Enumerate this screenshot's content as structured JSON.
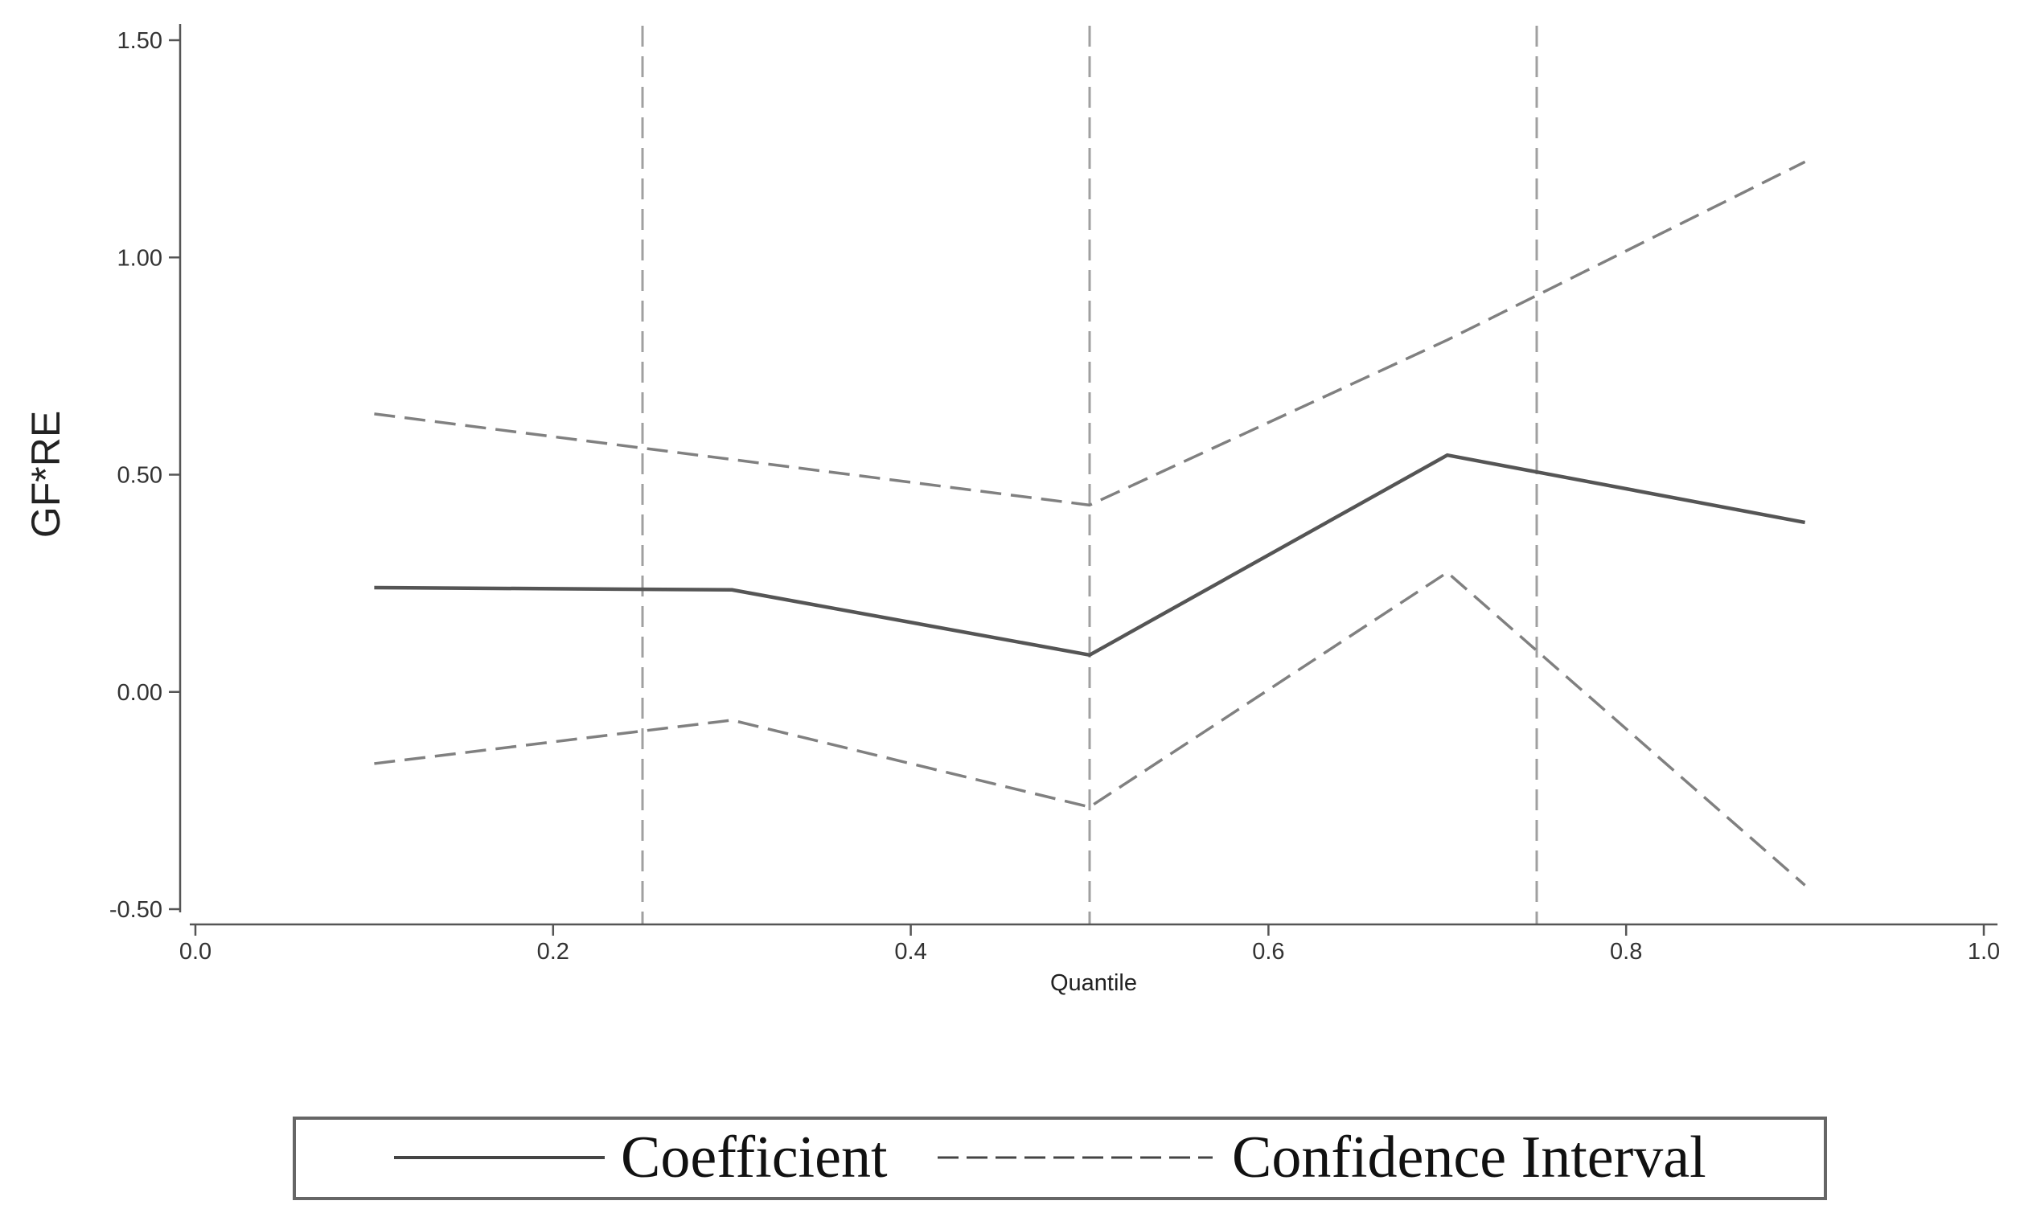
{
  "chart_data": {
    "type": "line",
    "xlabel": "Quantile",
    "ylabel": "GF*RE",
    "xlim": [
      0.0,
      1.0
    ],
    "ylim": [
      -0.5,
      1.5
    ],
    "x_ticks": [
      "0.0",
      "0.2",
      "0.4",
      "0.6",
      "0.8",
      "1.0"
    ],
    "y_ticks": [
      "-0.50",
      "0.00",
      "0.50",
      "1.00",
      "1.50"
    ],
    "grid": false,
    "reference_lines_x": [
      0.25,
      0.5,
      0.75
    ],
    "legend_position": "bottom",
    "x": [
      0.1,
      0.3,
      0.5,
      0.7,
      0.9
    ],
    "series": [
      {
        "name": "Coefficient",
        "style": "solid",
        "color": "#555555",
        "values": [
          0.24,
          0.235,
          0.085,
          0.545,
          0.39
        ]
      },
      {
        "name": "Confidence Interval",
        "style": "dashed",
        "color": "#808080",
        "values": [
          0.64,
          0.535,
          0.43,
          0.81,
          1.22
        ]
      },
      {
        "name": "Confidence Interval",
        "style": "dashed",
        "color": "#808080",
        "values": [
          -0.165,
          -0.065,
          -0.265,
          0.275,
          -0.445
        ]
      }
    ],
    "legend": [
      {
        "label": "Coefficient",
        "style": "solid"
      },
      {
        "label": "Confidence Interval",
        "style": "dashed"
      }
    ]
  }
}
